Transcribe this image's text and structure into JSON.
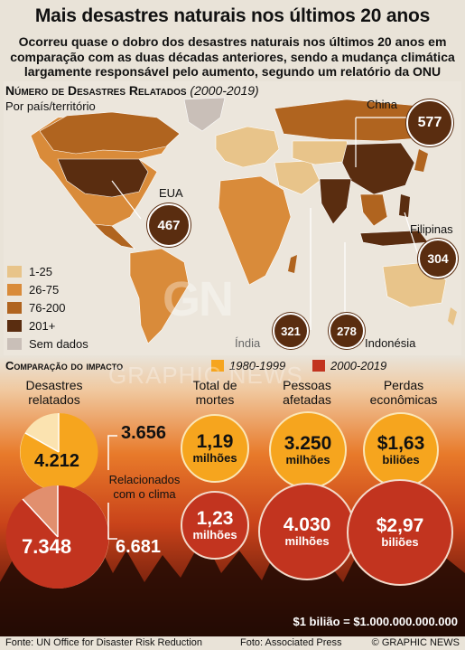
{
  "title": "Mais desastres naturais nos últimos 20 anos",
  "subtitle": "Ocorreu quase o dobro dos desastres naturais nos últimos 20 anos em comparação com as duas décadas anteriores, sendo a mudança climática largamente responsável pelo aumento, segundo um relatório da ONU",
  "map": {
    "heading": "Número de Desastres Relatados",
    "heading_range": "(2000-2019)",
    "subheading": "Por país/território",
    "callouts": [
      {
        "place": "China",
        "value": "577"
      },
      {
        "place": "EUA",
        "value": "467"
      },
      {
        "place": "Filipinas",
        "value": "304"
      },
      {
        "place": "Índia",
        "value": "321"
      },
      {
        "place": "Indonésia",
        "value": "278"
      }
    ],
    "legend": [
      {
        "label": "1-25",
        "color": "#e8c48a"
      },
      {
        "label": "26-75",
        "color": "#d98b3a"
      },
      {
        "label": "76-200",
        "color": "#b0641f"
      },
      {
        "label": "201+",
        "color": "#5a2d10"
      },
      {
        "label": "Sem dados",
        "color": "#c9bfb8"
      }
    ]
  },
  "comparison": {
    "heading": "Comparação do impacto",
    "period_old": "1980-1999",
    "period_new": "2000-2019",
    "color_old": "#f6a51e",
    "color_new": "#c2341f",
    "columns": [
      {
        "label": "Desastres relatados"
      },
      {
        "label": "Total de mortes"
      },
      {
        "label": "Pessoas afetadas"
      },
      {
        "label": "Perdas econômicas"
      }
    ],
    "disasters": {
      "old_total": "4.212",
      "old_climate": "3.656",
      "new_total": "7.348",
      "new_climate": "6.681",
      "climate_label": "Relacionados com o clima"
    },
    "deaths": {
      "old_value": "1,19",
      "old_unit": "milhões",
      "new_value": "1,23",
      "new_unit": "milhões"
    },
    "affected": {
      "old_value": "3.250",
      "old_unit": "milhões",
      "new_value": "4.030",
      "new_unit": "milhões"
    },
    "losses": {
      "old_value": "$1,63",
      "old_unit": "biliões",
      "new_value": "$2,97",
      "new_unit": "biliões"
    },
    "note": "$1 bilião = $1.000.000.000.000"
  },
  "footer": {
    "source": "Fonte: UN Office for Disaster Risk Reduction",
    "photo": "Foto: Associated Press",
    "brand": "© GRAPHIC NEWS"
  },
  "watermark": "GRAPHIC NEWS"
}
